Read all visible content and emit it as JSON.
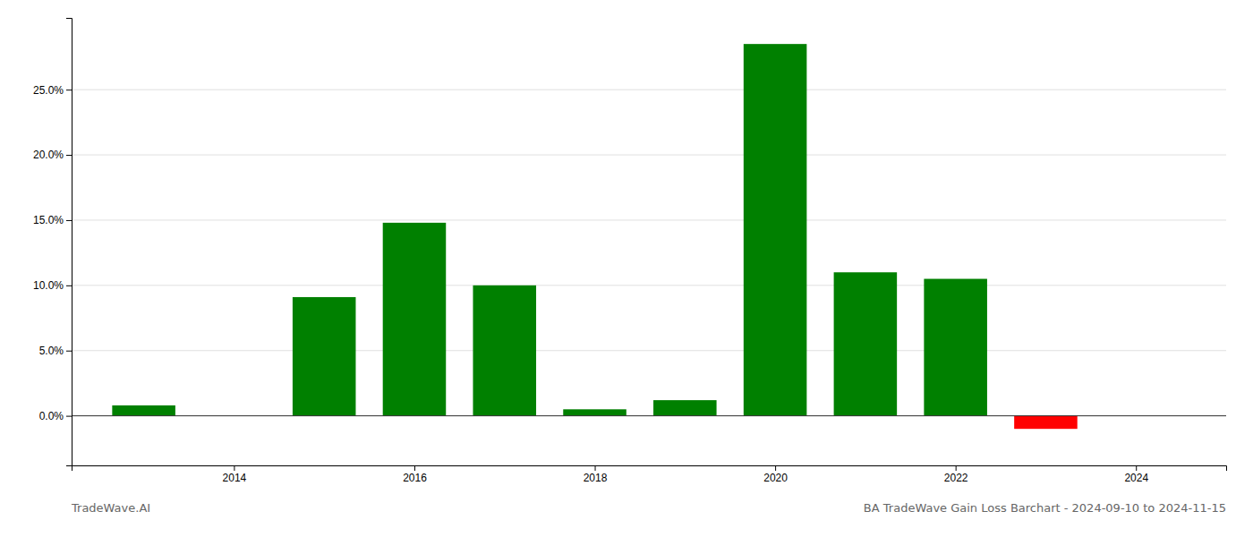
{
  "chart_data": {
    "type": "bar",
    "title": "BA TradeWave Gain Loss Barchart - 2024-09-10 to 2024-11-15",
    "annotations": [
      {
        "text": "TradeWave.AI"
      }
    ],
    "x": [
      2013,
      2015,
      2016,
      2017,
      2018,
      2019,
      2020,
      2021,
      2022,
      2023
    ],
    "values": [
      0.008,
      0.091,
      0.148,
      0.1,
      0.005,
      0.012,
      0.285,
      0.11,
      0.105,
      -0.01
    ],
    "colors": [
      "#008000",
      "#008000",
      "#008000",
      "#008000",
      "#008000",
      "#008000",
      "#008000",
      "#008000",
      "#008000",
      "#ff0000"
    ],
    "xlim": [
      2012.2,
      2025.0
    ],
    "ylim": [
      -0.038,
      0.305
    ],
    "xticks": [
      2014,
      2016,
      2018,
      2020,
      2022,
      2024
    ],
    "yticks": [
      {
        "value": 0.0,
        "label": "0.0%"
      },
      {
        "value": 0.05,
        "label": "5.0%"
      },
      {
        "value": 0.1,
        "label": "10.0%"
      },
      {
        "value": 0.15,
        "label": "15.0%"
      },
      {
        "value": 0.2,
        "label": "20.0%"
      },
      {
        "value": 0.25,
        "label": "25.0%"
      }
    ],
    "grid": true
  }
}
